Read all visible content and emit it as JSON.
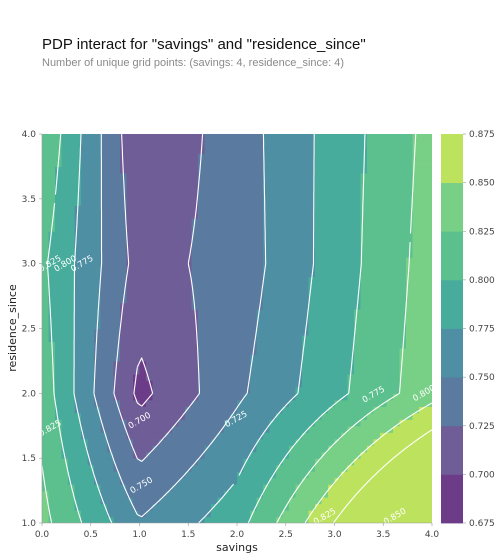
{
  "chart_data": {
    "type": "contour",
    "title": "PDP interact for \"savings\" and \"residence_since\"",
    "subtitle": "Number of unique grid points: (savings: 4, residence_since: 4)",
    "xlabel": "savings",
    "ylabel": "residence_since",
    "xlim": [
      0.0,
      4.0
    ],
    "ylim": [
      1.0,
      4.0
    ],
    "x_ticks": [
      "0.0",
      "0.5",
      "1.0",
      "1.5",
      "2.0",
      "2.5",
      "3.0",
      "3.5",
      "4.0"
    ],
    "y_ticks": [
      "1.0",
      "1.5",
      "2.0",
      "2.5",
      "3.0",
      "3.5",
      "4.0"
    ],
    "x_grid": [
      0,
      1,
      2,
      3
    ],
    "y_grid": [
      1,
      2,
      3,
      4
    ],
    "z_rows_by_residence_since": [
      [
        0.833,
        0.752,
        0.79,
        0.876
      ],
      [
        0.815,
        0.693,
        0.745,
        0.793
      ],
      [
        0.805,
        0.715,
        0.735,
        0.786
      ],
      [
        0.823,
        0.703,
        0.737,
        0.785
      ]
    ],
    "contour_levels": [
      "0.700",
      "0.725",
      "0.750",
      "0.775",
      "0.800",
      "0.825",
      "0.850",
      "0.875"
    ],
    "contour_level_values": [
      0.7,
      0.725,
      0.75,
      0.775,
      0.8,
      0.825,
      0.85,
      0.875
    ],
    "line_labels": [
      {
        "text": "0.825",
        "x": 0.06,
        "y": 3.0
      },
      {
        "text": "0.800",
        "x": 0.24,
        "y": 3.0
      },
      {
        "text": "0.775",
        "x": 0.41,
        "y": 3.0
      },
      {
        "text": "0.700",
        "x": 1.0,
        "y": 1.79
      },
      {
        "text": "0.725",
        "x": 1.99,
        "y": 1.8
      },
      {
        "text": "0.775",
        "x": 3.4,
        "y": 1.99
      },
      {
        "text": "0.800",
        "x": 3.99,
        "y": 2.0
      },
      {
        "text": "0.825",
        "x": 0.02,
        "y": 1.73
      },
      {
        "text": "0.750",
        "x": 1.02,
        "y": 1.29
      },
      {
        "text": "0.825",
        "x": 2.9,
        "y": 1.05
      },
      {
        "text": "0.850",
        "x": 3.62,
        "y": 1.05
      }
    ],
    "colorbar": {
      "ticks": [
        "0.675",
        "0.700",
        "0.725",
        "0.750",
        "0.775",
        "0.800",
        "0.825",
        "0.850",
        "0.875"
      ],
      "tick_values": [
        0.675,
        0.7,
        0.725,
        0.75,
        0.775,
        0.8,
        0.825,
        0.85,
        0.875
      ],
      "colors": [
        "#6d3c88",
        "#6f5d98",
        "#5a7aa0",
        "#4f8fa4",
        "#48ac9c",
        "#5cc08e",
        "#78cf86",
        "#bde35e",
        "#f8e747"
      ]
    },
    "grid": false
  }
}
